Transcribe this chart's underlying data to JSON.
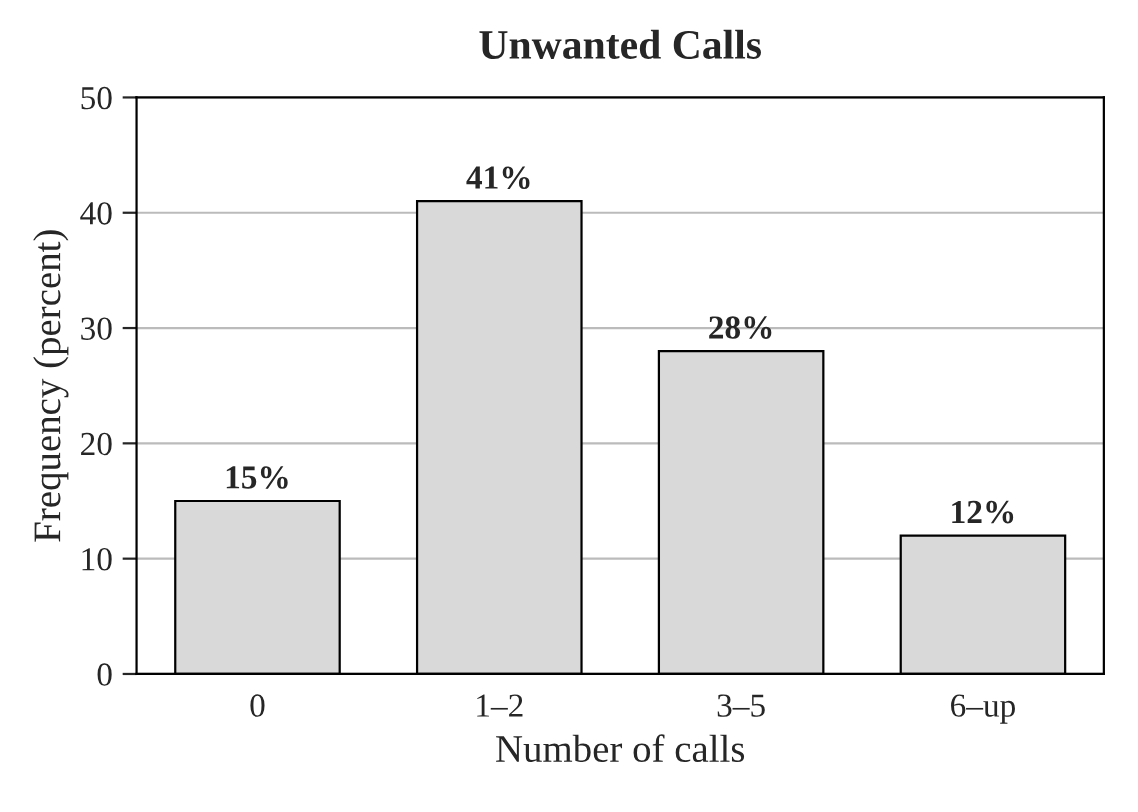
{
  "chart_data": {
    "type": "bar",
    "title": "Unwanted Calls",
    "xlabel": "Number of calls",
    "ylabel": "Frequency (percent)",
    "categories": [
      "0",
      "1–2",
      "3–5",
      "6–up"
    ],
    "values": [
      15,
      41,
      28,
      12
    ],
    "value_labels": [
      "15%",
      "41%",
      "28%",
      "12%"
    ],
    "color": "#d9d9d9",
    "ylim": [
      0,
      50
    ],
    "yticks": [
      0,
      10,
      20,
      30,
      40,
      50
    ],
    "grid": "y"
  }
}
